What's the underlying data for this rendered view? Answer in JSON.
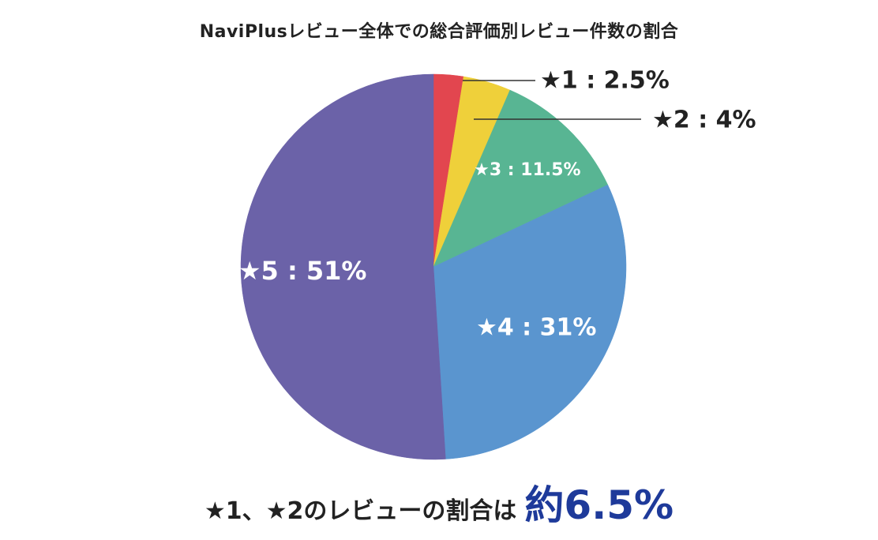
{
  "chart_data": {
    "type": "pie",
    "title": "NaviPlusレビュー全体での総合評価別レビュー件数の割合",
    "unit": "%",
    "slices": [
      {
        "label": "★1 : 2.5%",
        "value": 2.5,
        "color": "#e2464f",
        "label_position": "outside"
      },
      {
        "label": "★2 : 4%",
        "value": 4,
        "color": "#efd03a",
        "label_position": "outside"
      },
      {
        "label": "★3 : 11.5%",
        "value": 11.5,
        "color": "#58b593",
        "label_position": "inside"
      },
      {
        "label": "★4 : 31%",
        "value": 31,
        "color": "#5a95cf",
        "label_position": "inside"
      },
      {
        "label": "★5 : 51%",
        "value": 51,
        "color": "#6b62a8",
        "label_position": "inside"
      }
    ],
    "start_angle": "12 o'clock",
    "direction": "clockwise",
    "legend": "none"
  },
  "summary": {
    "prefix": "★1、★2のレビューの割合は",
    "value": "約6.5%",
    "value_color": "#1e3a9a"
  }
}
